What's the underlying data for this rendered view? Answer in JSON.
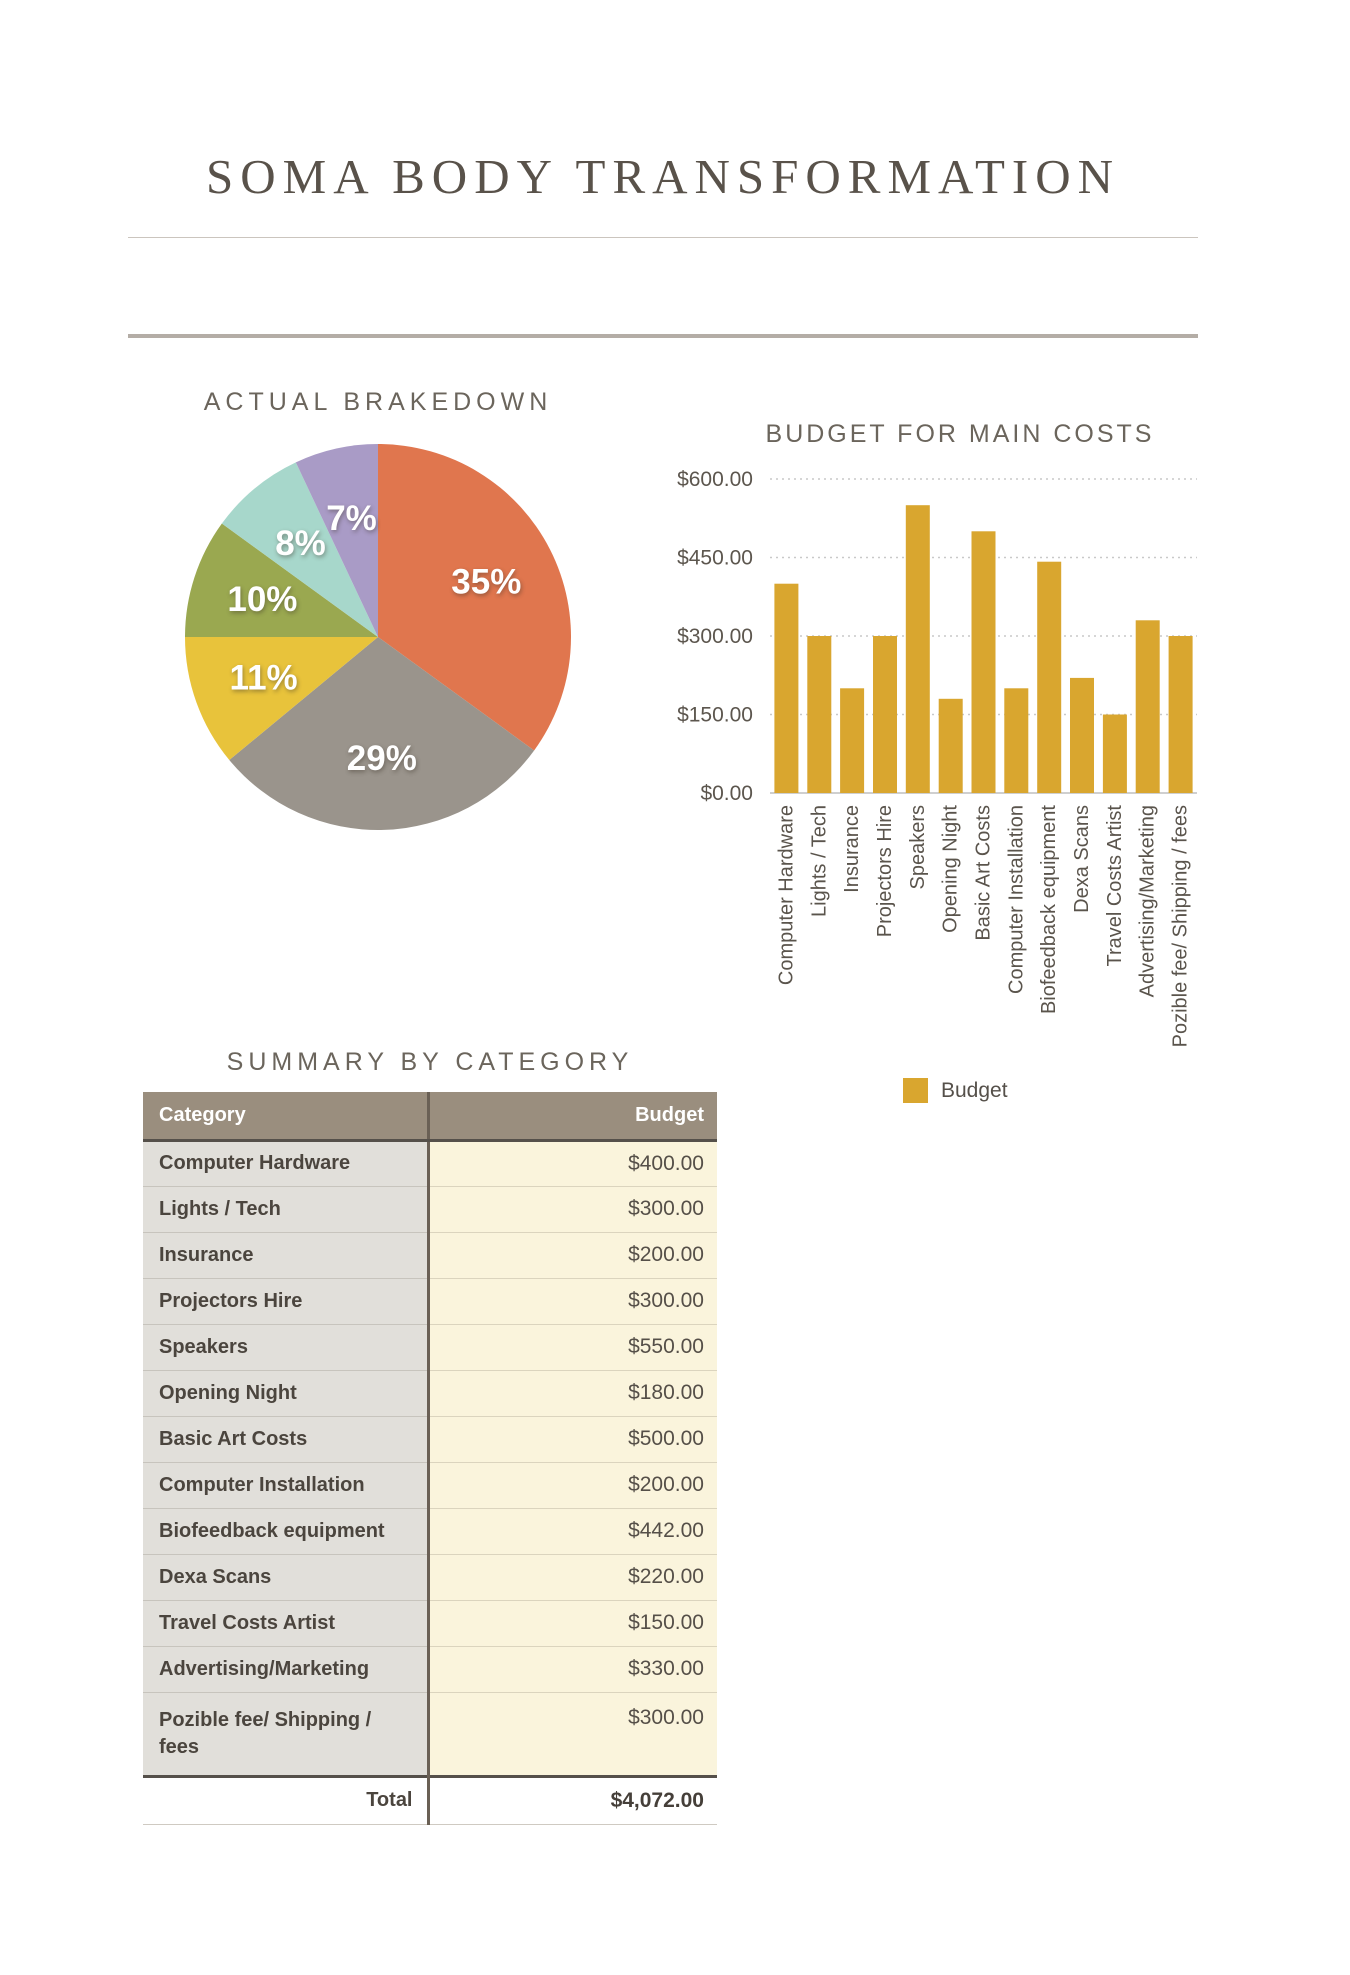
{
  "page": {
    "title": "SOMA BODY TRANSFORMATION"
  },
  "pie_section": {
    "title": "ACTUAL BRAKEDOWN"
  },
  "bar_section": {
    "title": "BUDGET FOR MAIN COSTS"
  },
  "table_section": {
    "title": "SUMMARY BY CATEGORY"
  },
  "colors": {
    "accent_gold": "#D9A62F",
    "title_text": "#59524A",
    "section_title_text": "#6B655C",
    "table_header_bg": "#9A8E7E",
    "table_category_bg": "#E1DFDA",
    "table_budget_bg": "#FAF4DC",
    "table_divider": "#6A6055"
  },
  "chart_data": [
    {
      "type": "pie",
      "title": "ACTUAL BRAKEDOWN",
      "direction": "clockwise",
      "start_angle_deg": 0,
      "slices": [
        {
          "label": "35%",
          "value": 35,
          "color": "#E0764E"
        },
        {
          "label": "29%",
          "value": 29,
          "color": "#9A948C"
        },
        {
          "label": "11%",
          "value": 11,
          "color": "#E8C33B"
        },
        {
          "label": "10%",
          "value": 10,
          "color": "#9AA850"
        },
        {
          "label": "8%",
          "value": 8,
          "color": "#A7D7CB"
        },
        {
          "label": "7%",
          "value": 7,
          "color": "#A99BC6"
        }
      ],
      "label_color": "#FFFFFF"
    },
    {
      "type": "bar",
      "title": "BUDGET FOR MAIN COSTS",
      "categories": [
        "Computer Hardware",
        "Lights / Tech",
        "Insurance",
        "Projectors Hire",
        "Speakers",
        "Opening Night",
        "Basic Art Costs",
        "Computer Installation",
        "Biofeedback equipment",
        "Dexa Scans",
        "Travel Costs Artist",
        "Advertising/Marketing",
        "Pozible fee/ Shipping / fees"
      ],
      "values": [
        400,
        300,
        200,
        300,
        550,
        180,
        500,
        200,
        442,
        220,
        150,
        330,
        300
      ],
      "bar_color": "#D9A62F",
      "ylim": [
        0,
        600
      ],
      "ytick_labels": [
        "$0.00",
        "$150.00",
        "$300.00",
        "$450.00",
        "$600.00"
      ],
      "grid": "dotted-horizontal",
      "legend": [
        {
          "name": "Budget",
          "color": "#D9A62F"
        }
      ],
      "legend_position": "bottom"
    }
  ],
  "table": {
    "title": "SUMMARY BY CATEGORY",
    "columns": [
      "Category",
      "Budget"
    ],
    "rows": [
      [
        "Computer Hardware",
        "$400.00"
      ],
      [
        "Lights / Tech",
        "$300.00"
      ],
      [
        "Insurance",
        "$200.00"
      ],
      [
        "Projectors Hire",
        "$300.00"
      ],
      [
        "Speakers",
        "$550.00"
      ],
      [
        "Opening Night",
        "$180.00"
      ],
      [
        "Basic Art Costs",
        "$500.00"
      ],
      [
        "Computer Installation",
        "$200.00"
      ],
      [
        "Biofeedback equipment",
        "$442.00"
      ],
      [
        "Dexa Scans",
        "$220.00"
      ],
      [
        "Travel Costs Artist",
        "$150.00"
      ],
      [
        "Advertising/Marketing",
        "$330.00"
      ],
      [
        "Pozible fee/ Shipping / fees",
        "$300.00"
      ]
    ],
    "total_row": {
      "label": "Total",
      "value": "$4,072.00"
    }
  }
}
